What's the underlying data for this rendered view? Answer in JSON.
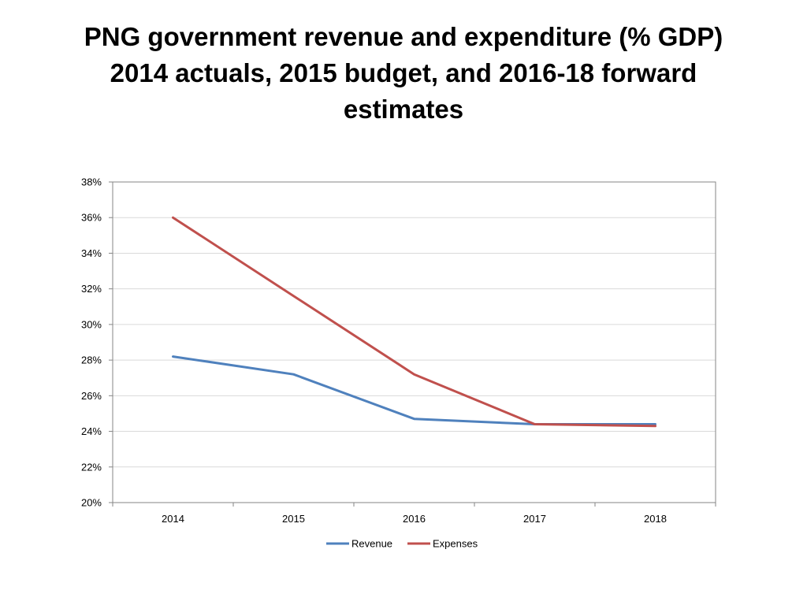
{
  "slide": {
    "title_lines": [
      "PNG government revenue and expenditure (% GDP)",
      "2014 actuals, 2015 budget, and 2016-18 forward",
      "estimates"
    ]
  },
  "chart_data": {
    "type": "line",
    "title": "PNG government revenue and expenditure (% GDP) 2014 actuals, 2015 budget, and 2016-18 forward estimates",
    "xlabel": "",
    "ylabel": "",
    "categories": [
      "2014",
      "2015",
      "2016",
      "2017",
      "2018"
    ],
    "ylim": [
      20,
      38
    ],
    "ytick_step": 2,
    "ytick_labels": [
      "20%",
      "22%",
      "24%",
      "26%",
      "28%",
      "30%",
      "32%",
      "34%",
      "36%",
      "38%"
    ],
    "grid": true,
    "legend_position": "bottom",
    "series": [
      {
        "name": "Revenue",
        "color": "#4F81BD",
        "values": [
          28.2,
          27.2,
          24.7,
          24.4,
          24.4
        ]
      },
      {
        "name": "Expenses",
        "color": "#C0504D",
        "values": [
          36.0,
          31.6,
          27.2,
          24.4,
          24.3
        ]
      }
    ]
  }
}
